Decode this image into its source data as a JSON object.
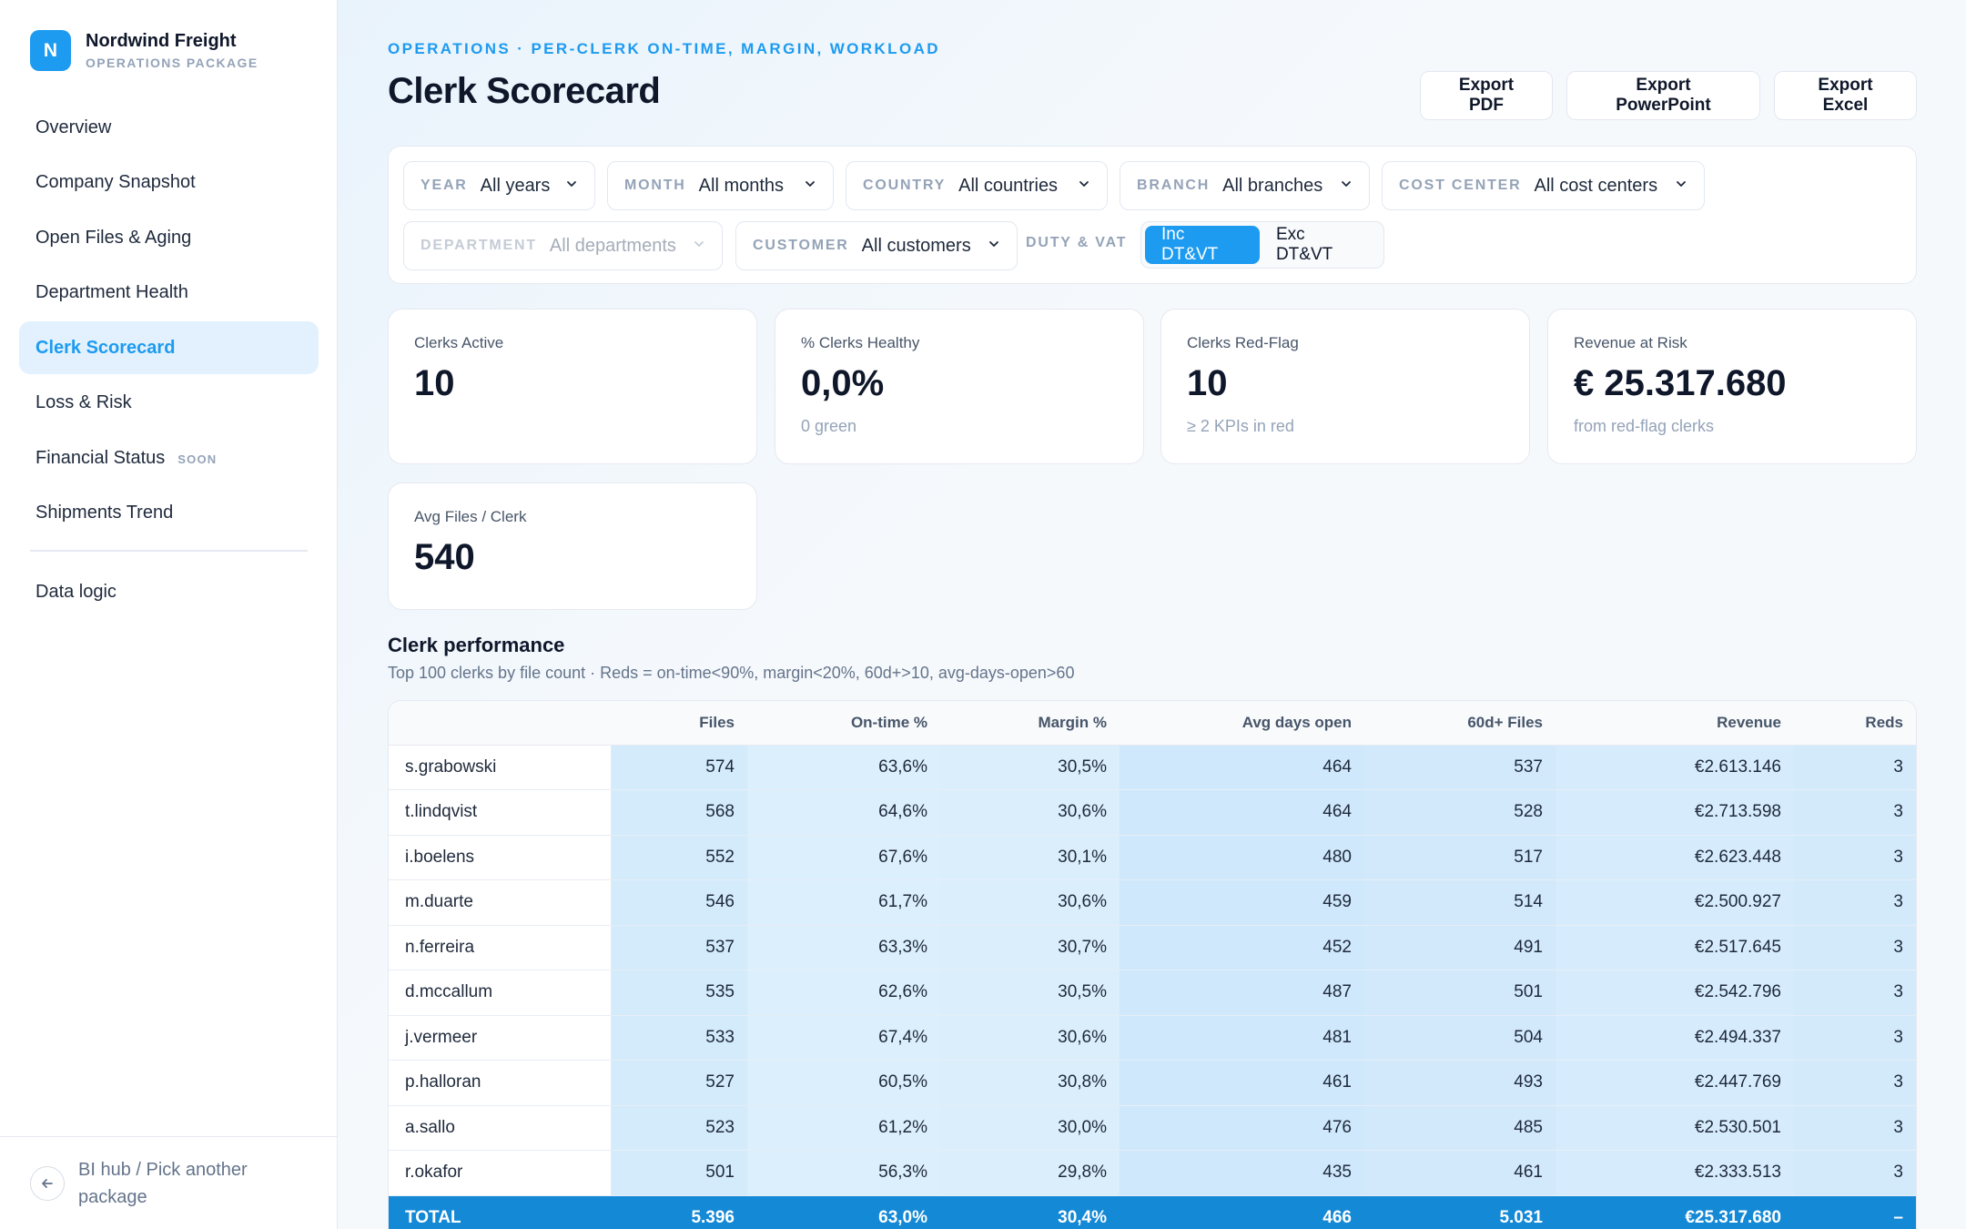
{
  "brand": {
    "logo_letter": "N",
    "name": "Nordwind Freight",
    "subtitle": "OPERATIONS PACKAGE"
  },
  "nav": {
    "items": [
      {
        "label": "Overview"
      },
      {
        "label": "Company Snapshot"
      },
      {
        "label": "Open Files & Aging"
      },
      {
        "label": "Department Health"
      },
      {
        "label": "Clerk Scorecard",
        "active": true
      },
      {
        "label": "Loss & Risk"
      },
      {
        "label": "Financial Status",
        "badge": "SOON"
      },
      {
        "label": "Shipments Trend"
      }
    ],
    "data_logic": "Data logic"
  },
  "footer": {
    "back_icon": "arrow-left-icon",
    "label": "BI hub / Pick another package"
  },
  "header": {
    "eyebrow": "OPERATIONS · PER-CLERK ON-TIME, MARGIN, WORKLOAD",
    "title": "Clerk Scorecard",
    "exports": [
      "Export PDF",
      "Export PowerPoint",
      "Export Excel"
    ]
  },
  "filters": {
    "year": {
      "label": "YEAR",
      "value": "All years"
    },
    "month": {
      "label": "MONTH",
      "value": "All months"
    },
    "country": {
      "label": "COUNTRY",
      "value": "All countries"
    },
    "branch": {
      "label": "BRANCH",
      "value": "All branches"
    },
    "cost_center": {
      "label": "COST CENTER",
      "value": "All cost centers"
    },
    "department": {
      "label": "DEPARTMENT",
      "value": "All departments",
      "disabled": true
    },
    "customer": {
      "label": "CUSTOMER",
      "value": "All customers"
    },
    "duty_vat": {
      "label": "DUTY & VAT",
      "options": [
        "Inc DT&VT",
        "Exc DT&VT"
      ],
      "selected": "Inc DT&VT"
    },
    "chevron_icon": "chevron-down-icon"
  },
  "kpis": {
    "clerks_active": {
      "label": "Clerks Active",
      "value": "10"
    },
    "clerks_healthy": {
      "label": "% Clerks Healthy",
      "value": "0,0%",
      "note": "0 green"
    },
    "clerks_redflag": {
      "label": "Clerks Red-Flag",
      "value": "10",
      "note": "≥ 2 KPIs in red"
    },
    "revenue_risk": {
      "label": "Revenue at Risk",
      "value": "€ 25.317.680",
      "note": "from red-flag clerks"
    },
    "avg_files": {
      "label": "Avg Files / Clerk",
      "value": "540"
    }
  },
  "table": {
    "title": "Clerk performance",
    "subtitle": "Top 100 clerks by file count · Reds = on-time<90%, margin<20%, 60d+>10, avg-days-open>60",
    "columns": [
      "",
      "Files",
      "On-time %",
      "Margin %",
      "Avg days open",
      "60d+ Files",
      "Revenue",
      "Reds"
    ],
    "rows": [
      [
        "s.grabowski",
        "574",
        "63,6%",
        "30,5%",
        "464",
        "537",
        "€2.613.146",
        "3"
      ],
      [
        "t.lindqvist",
        "568",
        "64,6%",
        "30,6%",
        "464",
        "528",
        "€2.713.598",
        "3"
      ],
      [
        "i.boelens",
        "552",
        "67,6%",
        "30,1%",
        "480",
        "517",
        "€2.623.448",
        "3"
      ],
      [
        "m.duarte",
        "546",
        "61,7%",
        "30,6%",
        "459",
        "514",
        "€2.500.927",
        "3"
      ],
      [
        "n.ferreira",
        "537",
        "63,3%",
        "30,7%",
        "452",
        "491",
        "€2.517.645",
        "3"
      ],
      [
        "d.mccallum",
        "535",
        "62,6%",
        "30,5%",
        "487",
        "501",
        "€2.542.796",
        "3"
      ],
      [
        "j.vermeer",
        "533",
        "67,4%",
        "30,6%",
        "481",
        "504",
        "€2.494.337",
        "3"
      ],
      [
        "p.halloran",
        "527",
        "60,5%",
        "30,8%",
        "461",
        "493",
        "€2.447.769",
        "3"
      ],
      [
        "a.sallo",
        "523",
        "61,2%",
        "30,0%",
        "476",
        "485",
        "€2.530.501",
        "3"
      ],
      [
        "r.okafor",
        "501",
        "56,3%",
        "29,8%",
        "435",
        "461",
        "€2.333.513",
        "3"
      ]
    ],
    "total": [
      "TOTAL",
      "5.396",
      "63,0%",
      "30,4%",
      "466",
      "5.031",
      "€25.317.680",
      "–"
    ]
  },
  "colors": {
    "accent": "#1d9bf0",
    "total_row": "#1489d6",
    "cell_tint": "#d3ebfb"
  }
}
